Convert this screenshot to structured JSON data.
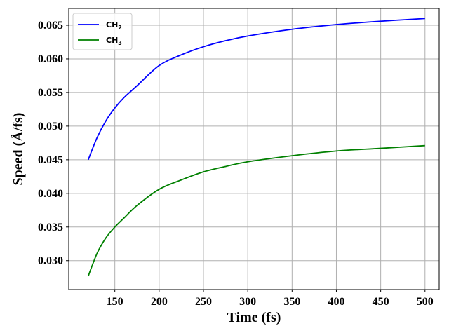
{
  "chart_data": {
    "type": "line",
    "xlabel": "Time (fs)",
    "ylabel": "Speed (Å/fs)",
    "xlim": [
      98,
      516
    ],
    "ylim": [
      0.0257,
      0.0675
    ],
    "xticks": [
      150,
      200,
      250,
      300,
      350,
      400,
      450,
      500
    ],
    "yticks": [
      0.03,
      0.035,
      0.04,
      0.045,
      0.05,
      0.055,
      0.06,
      0.065
    ],
    "ytick_labels": [
      "0.030",
      "0.035",
      "0.040",
      "0.045",
      "0.050",
      "0.055",
      "0.060",
      "0.065"
    ],
    "grid": true,
    "legend_position": "top-left",
    "series": [
      {
        "name": "CH2",
        "name_main": "CH",
        "name_sub": "2",
        "color": "#0000ff",
        "x": [
          120,
          130,
          140,
          150,
          160,
          175,
          200,
          225,
          250,
          275,
          300,
          350,
          400,
          450,
          500
        ],
        "y": [
          0.045,
          0.0483,
          0.0508,
          0.0527,
          0.0542,
          0.056,
          0.059,
          0.0606,
          0.0618,
          0.0627,
          0.0634,
          0.0644,
          0.0651,
          0.0656,
          0.066
        ]
      },
      {
        "name": "CH3",
        "name_main": "CH",
        "name_sub": "3",
        "color": "#008000",
        "x": [
          120,
          130,
          140,
          150,
          160,
          175,
          200,
          225,
          250,
          275,
          300,
          350,
          400,
          450,
          500
        ],
        "y": [
          0.0277,
          0.0311,
          0.0334,
          0.035,
          0.0363,
          0.0382,
          0.0406,
          0.042,
          0.0432,
          0.044,
          0.0447,
          0.0456,
          0.0463,
          0.0467,
          0.0471
        ]
      }
    ]
  }
}
